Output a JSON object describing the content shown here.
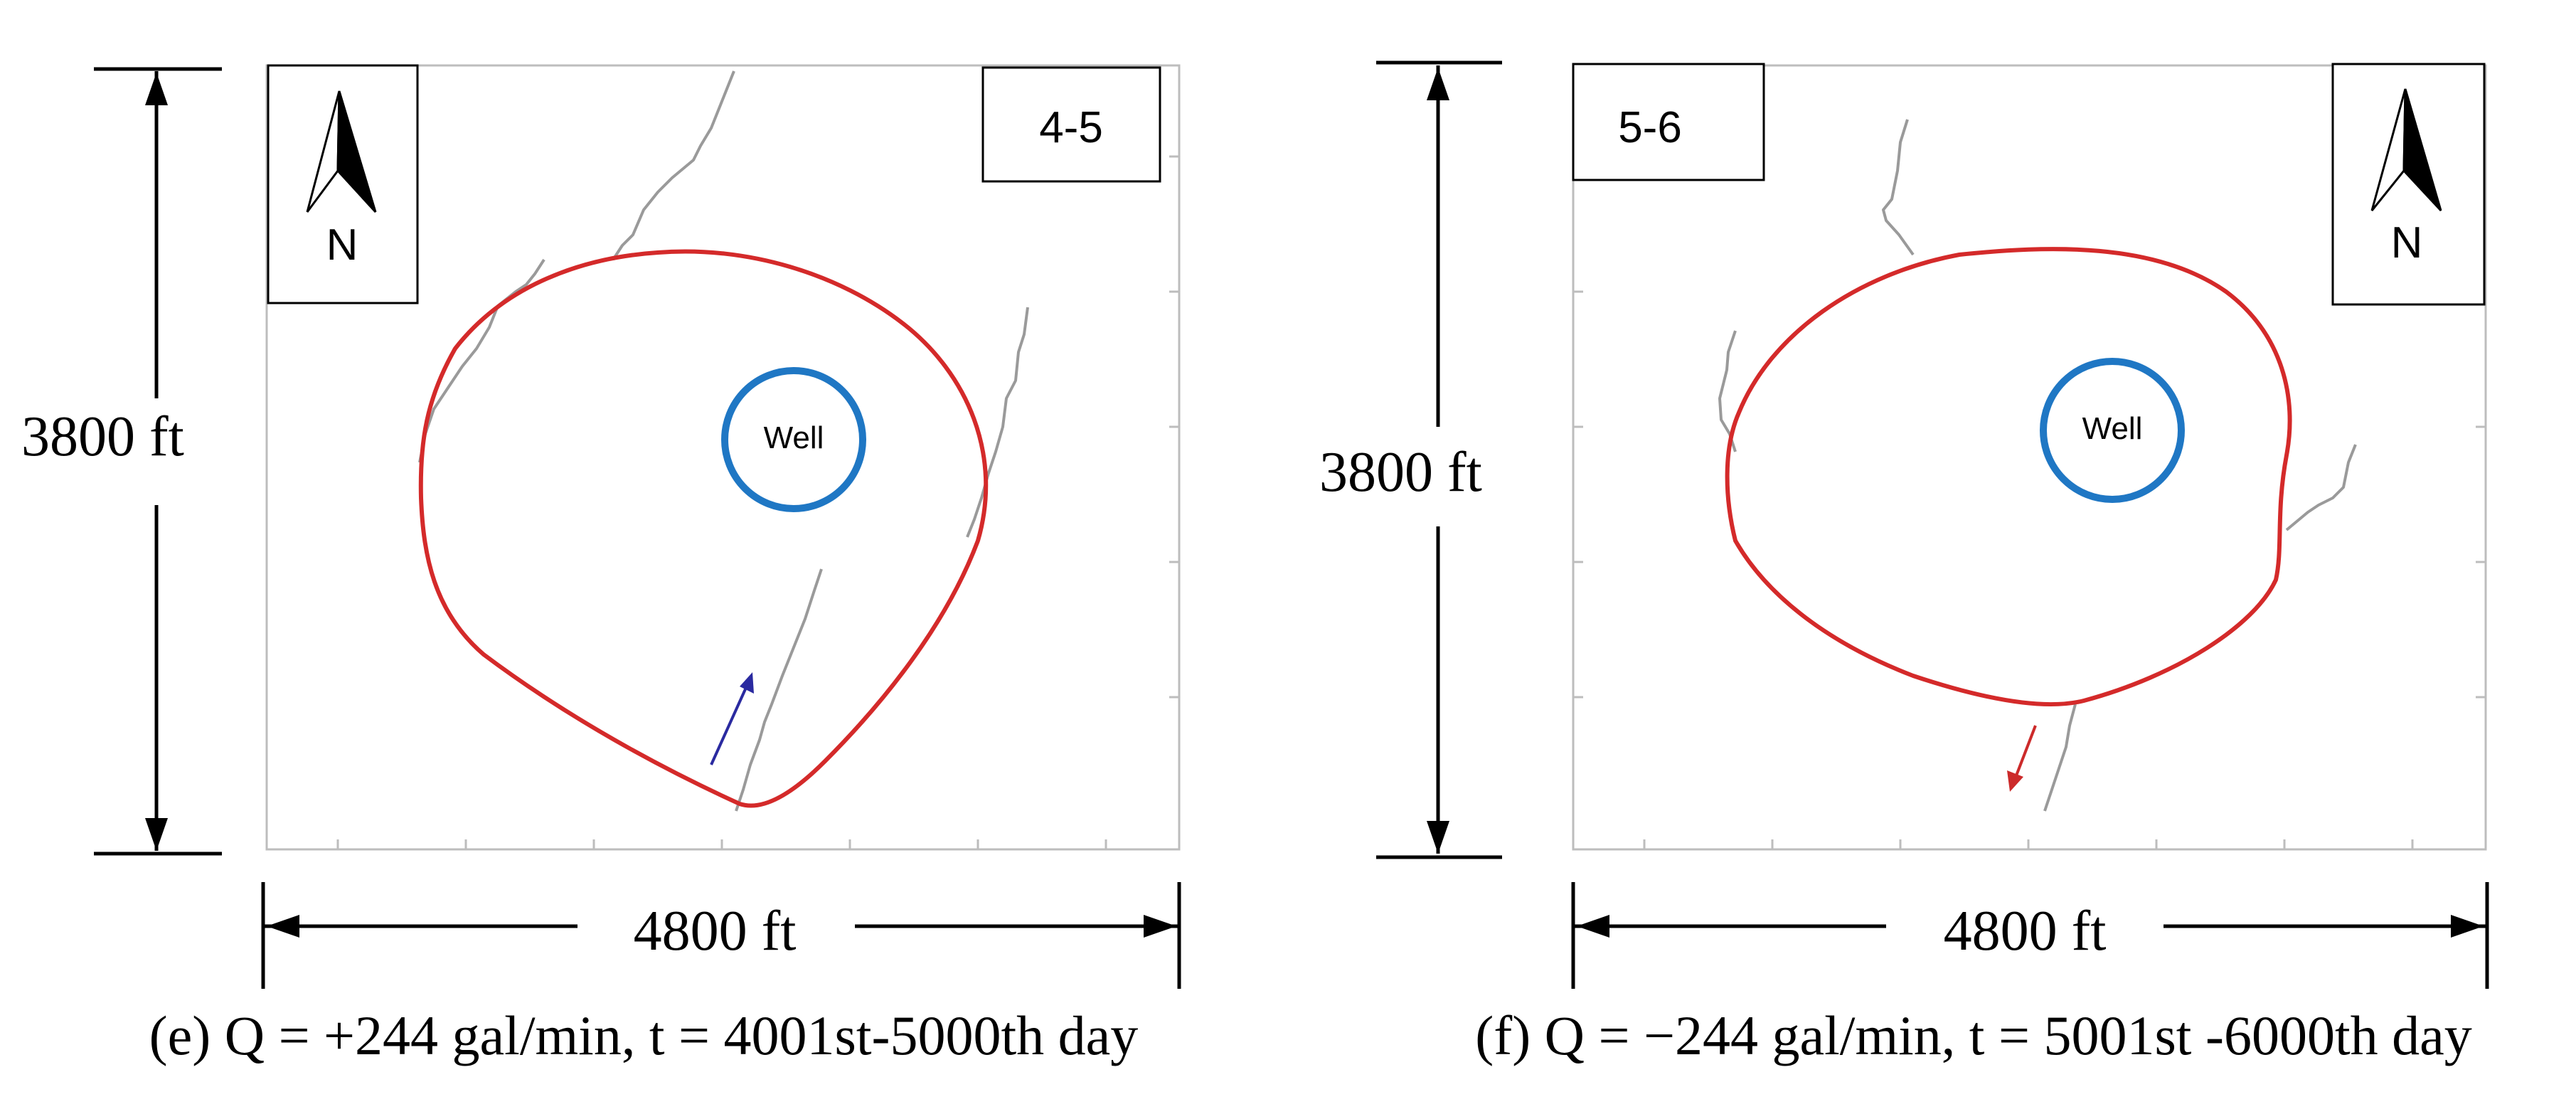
{
  "panels": [
    {
      "id": "e",
      "panel_label": "4-5",
      "well_label": "Well",
      "north_label": "N",
      "height_dimension": "3800 ft",
      "width_dimension": "4800 ft",
      "caption": "(e) Q = +244 gal/min, t = 4001st-5000th day",
      "arrow_color": "#2a2aa0"
    },
    {
      "id": "f",
      "panel_label": "5-6",
      "well_label": "Well",
      "north_label": "N",
      "height_dimension": "3800 ft",
      "width_dimension": "4800 ft",
      "caption": "(f) Q = −244 gal/min, t = 5001st -6000th day",
      "arrow_color": "#cc2a2a"
    }
  ],
  "colors": {
    "boundary": "#d42a2a",
    "well": "#1f77c4",
    "fault": "#9a9a9a",
    "frame": "#bdbdbd",
    "text": "#000000"
  }
}
